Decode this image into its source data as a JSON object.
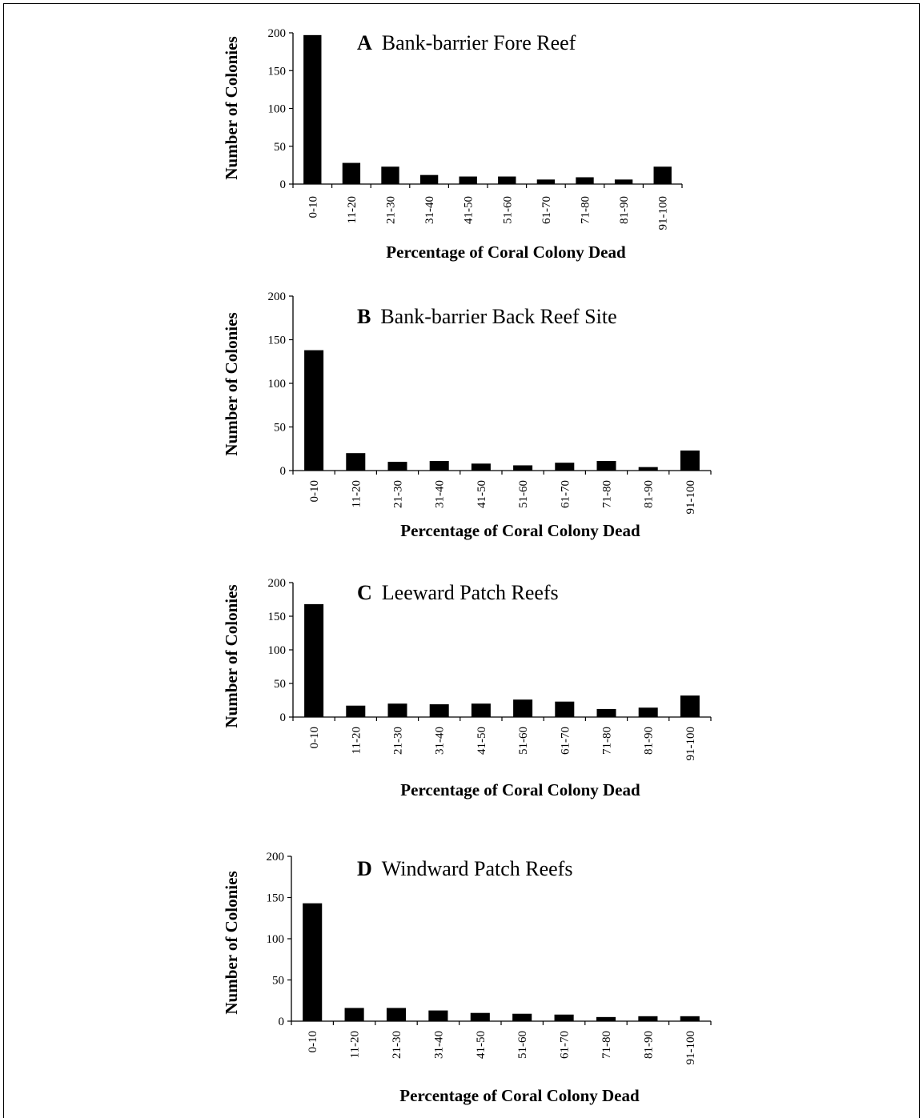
{
  "charts": {
    "bar_color": "#000000",
    "categories": [
      "0-10",
      "11-20",
      "21-30",
      "31-40",
      "41-50",
      "51-60",
      "61-70",
      "71-80",
      "81-90",
      "91-100"
    ],
    "ylabel": "Number of Colonies",
    "xlabel": "Percentage of Coral Colony Dead",
    "yticks": [
      "0",
      "50",
      "100",
      "150",
      "200"
    ]
  },
  "chart_data": [
    {
      "type": "bar",
      "letter": "A",
      "title": "Bank-barrier Fore Reef",
      "categories": [
        "0-10",
        "11-20",
        "21-30",
        "31-40",
        "41-50",
        "51-60",
        "61-70",
        "71-80",
        "81-90",
        "91-100"
      ],
      "values": [
        197,
        28,
        23,
        12,
        10,
        10,
        6,
        9,
        6,
        23
      ],
      "xlabel": "Percentage of Coral Colony Dead",
      "ylabel": "Number of Colonies",
      "ylim": [
        0,
        200
      ]
    },
    {
      "type": "bar",
      "letter": "B",
      "title": "Bank-barrier Back Reef Site",
      "categories": [
        "0-10",
        "11-20",
        "21-30",
        "31-40",
        "41-50",
        "51-60",
        "61-70",
        "71-80",
        "81-90",
        "91-100"
      ],
      "values": [
        138,
        20,
        10,
        11,
        8,
        6,
        9,
        11,
        4,
        23
      ],
      "xlabel": "Percentage of Coral Colony Dead",
      "ylabel": "Number of Colonies",
      "ylim": [
        0,
        200
      ]
    },
    {
      "type": "bar",
      "letter": "C",
      "title": "Leeward Patch Reefs",
      "categories": [
        "0-10",
        "11-20",
        "21-30",
        "31-40",
        "41-50",
        "51-60",
        "61-70",
        "71-80",
        "81-90",
        "91-100"
      ],
      "values": [
        168,
        17,
        20,
        19,
        20,
        26,
        23,
        12,
        14,
        32
      ],
      "xlabel": "Percentage of Coral Colony Dead",
      "ylabel": "Number of Colonies",
      "ylim": [
        0,
        200
      ]
    },
    {
      "type": "bar",
      "letter": "D",
      "title": "Windward Patch Reefs",
      "categories": [
        "0-10",
        "11-20",
        "21-30",
        "31-40",
        "41-50",
        "51-60",
        "61-70",
        "71-80",
        "81-90",
        "91-100"
      ],
      "values": [
        143,
        16,
        16,
        13,
        10,
        9,
        8,
        5,
        6,
        6
      ],
      "xlabel": "Percentage of Coral Colony Dead",
      "ylabel": "Number of Colonies",
      "ylim": [
        0,
        200
      ]
    }
  ]
}
